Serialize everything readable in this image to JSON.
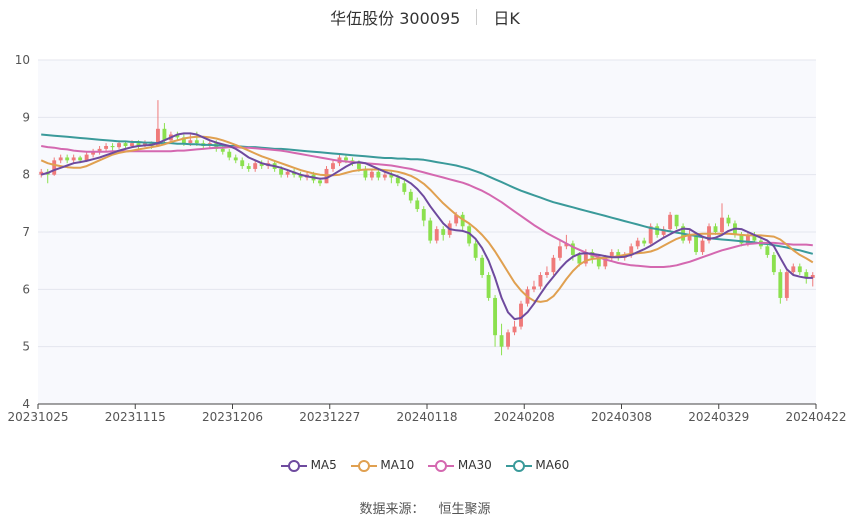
{
  "header": {
    "stock": "华伍股份 300095",
    "period": "日K"
  },
  "source": {
    "label": "数据来源：",
    "value": "恒生聚源"
  },
  "colors": {
    "up": "#ef7a7a",
    "down": "#8be04e",
    "MA5": "#6e4a9e",
    "MA10": "#e0a050",
    "MA30": "#d468b0",
    "MA60": "#3a9a9a",
    "grid": "#e4e6ee",
    "plot_bg": "#f8f9fd"
  },
  "chart_data": {
    "type": "candlestick",
    "ylim": [
      4,
      10
    ],
    "y_ticks": [
      4,
      5,
      6,
      7,
      8,
      9,
      10
    ],
    "x_tick_labels": [
      "20231025",
      "20231115",
      "20231206",
      "20231227",
      "20240118",
      "20240208",
      "20240308",
      "20240329",
      "20240422"
    ],
    "n_days": 120,
    "legend": [
      "MA5",
      "MA10",
      "MA30",
      "MA60"
    ],
    "candles": [
      [
        8.0,
        8.05,
        8.1,
        7.95
      ],
      [
        8.05,
        8.0,
        8.1,
        7.85
      ],
      [
        8.0,
        8.25,
        8.3,
        7.98
      ],
      [
        8.25,
        8.3,
        8.35,
        8.2
      ],
      [
        8.3,
        8.25,
        8.35,
        8.2
      ],
      [
        8.25,
        8.3,
        8.35,
        8.2
      ],
      [
        8.3,
        8.25,
        8.33,
        8.2
      ],
      [
        8.25,
        8.35,
        8.4,
        8.22
      ],
      [
        8.35,
        8.4,
        8.45,
        8.3
      ],
      [
        8.4,
        8.45,
        8.5,
        8.35
      ],
      [
        8.45,
        8.5,
        8.55,
        8.4
      ],
      [
        8.5,
        8.48,
        8.55,
        8.42
      ],
      [
        8.48,
        8.55,
        8.6,
        8.45
      ],
      [
        8.55,
        8.5,
        8.58,
        8.45
      ],
      [
        8.5,
        8.55,
        8.6,
        8.48
      ],
      [
        8.55,
        8.5,
        8.6,
        8.45
      ],
      [
        8.5,
        8.55,
        8.6,
        8.48
      ],
      [
        8.55,
        8.5,
        8.58,
        8.45
      ],
      [
        8.5,
        8.8,
        9.3,
        8.5
      ],
      [
        8.8,
        8.6,
        8.9,
        8.55
      ],
      [
        8.6,
        8.7,
        8.75,
        8.55
      ],
      [
        8.7,
        8.65,
        8.75,
        8.6
      ],
      [
        8.65,
        8.55,
        8.7,
        8.5
      ],
      [
        8.55,
        8.6,
        8.7,
        8.5
      ],
      [
        8.6,
        8.55,
        8.75,
        8.5
      ],
      [
        8.55,
        8.5,
        8.6,
        8.45
      ],
      [
        8.5,
        8.55,
        8.6,
        8.45
      ],
      [
        8.55,
        8.45,
        8.6,
        8.4
      ],
      [
        8.45,
        8.4,
        8.5,
        8.35
      ],
      [
        8.4,
        8.3,
        8.45,
        8.25
      ],
      [
        8.3,
        8.25,
        8.35,
        8.2
      ],
      [
        8.25,
        8.15,
        8.3,
        8.1
      ],
      [
        8.15,
        8.1,
        8.2,
        8.05
      ],
      [
        8.1,
        8.2,
        8.25,
        8.05
      ],
      [
        8.2,
        8.15,
        8.25,
        8.1
      ],
      [
        8.15,
        8.2,
        8.25,
        8.1
      ],
      [
        8.2,
        8.1,
        8.25,
        8.05
      ],
      [
        8.1,
        8.0,
        8.15,
        7.95
      ],
      [
        8.0,
        8.05,
        8.1,
        7.95
      ],
      [
        8.05,
        8.0,
        8.1,
        7.95
      ],
      [
        8.0,
        7.95,
        8.05,
        7.9
      ],
      [
        7.95,
        8.0,
        8.05,
        7.9
      ],
      [
        8.0,
        7.9,
        8.05,
        7.85
      ],
      [
        7.9,
        7.85,
        7.95,
        7.8
      ],
      [
        7.85,
        8.1,
        8.15,
        7.85
      ],
      [
        8.1,
        8.2,
        8.25,
        8.05
      ],
      [
        8.2,
        8.3,
        8.35,
        8.15
      ],
      [
        8.3,
        8.25,
        8.35,
        8.2
      ],
      [
        8.25,
        8.2,
        8.3,
        8.15
      ],
      [
        8.2,
        8.1,
        8.25,
        8.05
      ],
      [
        8.1,
        7.95,
        8.15,
        7.9
      ],
      [
        7.95,
        8.05,
        8.1,
        7.9
      ],
      [
        8.05,
        7.95,
        8.1,
        7.9
      ],
      [
        7.95,
        8.0,
        8.05,
        7.9
      ],
      [
        8.0,
        7.95,
        8.05,
        7.85
      ],
      [
        7.95,
        7.85,
        8.0,
        7.8
      ],
      [
        7.85,
        7.7,
        7.9,
        7.65
      ],
      [
        7.7,
        7.55,
        7.75,
        7.5
      ],
      [
        7.55,
        7.4,
        7.6,
        7.35
      ],
      [
        7.4,
        7.2,
        7.45,
        7.1
      ],
      [
        7.2,
        6.85,
        7.25,
        6.8
      ],
      [
        6.85,
        7.05,
        7.1,
        6.8
      ],
      [
        7.05,
        6.95,
        7.1,
        6.85
      ],
      [
        6.95,
        7.15,
        7.2,
        6.9
      ],
      [
        7.15,
        7.3,
        7.35,
        7.1
      ],
      [
        7.3,
        7.1,
        7.35,
        7.0
      ],
      [
        7.1,
        6.8,
        7.15,
        6.75
      ],
      [
        6.8,
        6.55,
        6.85,
        6.5
      ],
      [
        6.55,
        6.25,
        6.6,
        6.2
      ],
      [
        6.25,
        5.85,
        6.3,
        5.8
      ],
      [
        5.85,
        5.2,
        5.9,
        5.0
      ],
      [
        5.2,
        5.0,
        5.4,
        4.85
      ],
      [
        5.0,
        5.25,
        5.3,
        4.95
      ],
      [
        5.25,
        5.35,
        5.45,
        5.2
      ],
      [
        5.35,
        5.75,
        5.8,
        5.3
      ],
      [
        5.75,
        6.0,
        6.05,
        5.7
      ],
      [
        6.0,
        6.05,
        6.15,
        5.95
      ],
      [
        6.05,
        6.25,
        6.3,
        6.0
      ],
      [
        6.25,
        6.3,
        6.4,
        6.2
      ],
      [
        6.3,
        6.55,
        6.6,
        6.25
      ],
      [
        6.55,
        6.75,
        6.85,
        6.5
      ],
      [
        6.75,
        6.8,
        6.95,
        6.7
      ],
      [
        6.8,
        6.6,
        6.85,
        6.5
      ],
      [
        6.6,
        6.45,
        6.65,
        6.4
      ],
      [
        6.45,
        6.65,
        6.7,
        6.4
      ],
      [
        6.65,
        6.55,
        6.7,
        6.45
      ],
      [
        6.55,
        6.4,
        6.6,
        6.35
      ],
      [
        6.4,
        6.55,
        6.6,
        6.35
      ],
      [
        6.55,
        6.65,
        6.7,
        6.5
      ],
      [
        6.65,
        6.55,
        6.7,
        6.5
      ],
      [
        6.55,
        6.6,
        6.65,
        6.5
      ],
      [
        6.6,
        6.75,
        6.8,
        6.55
      ],
      [
        6.75,
        6.85,
        6.9,
        6.7
      ],
      [
        6.85,
        6.8,
        6.9,
        6.75
      ],
      [
        6.8,
        7.1,
        7.15,
        6.78
      ],
      [
        7.1,
        6.95,
        7.15,
        6.9
      ],
      [
        6.95,
        7.05,
        7.1,
        6.9
      ],
      [
        7.05,
        7.3,
        7.35,
        7.0
      ],
      [
        7.3,
        7.1,
        7.3,
        7.05
      ],
      [
        7.1,
        6.85,
        7.15,
        6.8
      ],
      [
        6.85,
        6.95,
        7.05,
        6.8
      ],
      [
        6.95,
        6.65,
        7.0,
        6.6
      ],
      [
        6.65,
        6.85,
        6.9,
        6.6
      ],
      [
        6.85,
        7.1,
        7.15,
        6.8
      ],
      [
        7.1,
        7.0,
        7.15,
        6.95
      ],
      [
        7.0,
        7.25,
        7.5,
        6.95
      ],
      [
        7.25,
        7.15,
        7.3,
        7.1
      ],
      [
        7.15,
        6.95,
        7.2,
        6.9
      ],
      [
        6.95,
        6.8,
        7.0,
        6.75
      ],
      [
        6.8,
        6.95,
        7.0,
        6.75
      ],
      [
        6.95,
        6.85,
        7.0,
        6.8
      ],
      [
        6.85,
        6.75,
        6.9,
        6.7
      ],
      [
        6.75,
        6.6,
        6.8,
        6.55
      ],
      [
        6.6,
        6.3,
        6.65,
        6.25
      ],
      [
        6.3,
        5.85,
        6.35,
        5.75
      ],
      [
        5.85,
        6.3,
        6.35,
        5.8
      ],
      [
        6.3,
        6.4,
        6.45,
        6.25
      ],
      [
        6.4,
        6.3,
        6.45,
        6.25
      ],
      [
        6.3,
        6.2,
        6.35,
        6.1
      ],
      [
        6.2,
        6.25,
        6.3,
        6.05
      ]
    ],
    "MA5": [
      8.0,
      8.03,
      8.08,
      8.12,
      8.16,
      8.2,
      8.22,
      8.24,
      8.27,
      8.3,
      8.34,
      8.38,
      8.42,
      8.45,
      8.48,
      8.5,
      8.51,
      8.52,
      8.55,
      8.6,
      8.65,
      8.7,
      8.72,
      8.72,
      8.7,
      8.65,
      8.6,
      8.56,
      8.53,
      8.5,
      8.45,
      8.38,
      8.3,
      8.25,
      8.2,
      8.17,
      8.15,
      8.12,
      8.08,
      8.04,
      8.0,
      7.97,
      7.95,
      7.93,
      7.94,
      8.0,
      8.07,
      8.14,
      8.2,
      8.22,
      8.2,
      8.15,
      8.1,
      8.05,
      8.01,
      7.97,
      7.92,
      7.85,
      7.75,
      7.62,
      7.45,
      7.3,
      7.15,
      7.05,
      7.03,
      7.02,
      6.98,
      6.88,
      6.72,
      6.5,
      6.2,
      5.85,
      5.6,
      5.48,
      5.5,
      5.6,
      5.75,
      5.92,
      6.08,
      6.22,
      6.36,
      6.48,
      6.57,
      6.62,
      6.63,
      6.62,
      6.6,
      6.58,
      6.56,
      6.56,
      6.57,
      6.6,
      6.65,
      6.7,
      6.76,
      6.83,
      6.9,
      6.96,
      7.02,
      7.06,
      7.05,
      6.98,
      6.92,
      6.88,
      6.9,
      6.95,
      7.02,
      7.06,
      7.05,
      7.0,
      6.95,
      6.9,
      6.85,
      6.75,
      6.55,
      6.35,
      6.25,
      6.22,
      6.2,
      6.2
    ],
    "MA10": [
      8.25,
      8.2,
      8.17,
      8.15,
      8.13,
      8.12,
      8.12,
      8.15,
      8.2,
      8.25,
      8.3,
      8.35,
      8.38,
      8.4,
      8.42,
      8.44,
      8.46,
      8.48,
      8.5,
      8.53,
      8.57,
      8.6,
      8.63,
      8.65,
      8.66,
      8.66,
      8.65,
      8.63,
      8.6,
      8.56,
      8.52,
      8.47,
      8.42,
      8.37,
      8.32,
      8.28,
      8.24,
      8.2,
      8.16,
      8.12,
      8.08,
      8.05,
      8.02,
      8.0,
      7.99,
      7.99,
      8.0,
      8.03,
      8.06,
      8.08,
      8.09,
      8.09,
      8.09,
      8.08,
      8.07,
      8.05,
      8.02,
      7.98,
      7.92,
      7.84,
      7.74,
      7.62,
      7.5,
      7.4,
      7.3,
      7.22,
      7.15,
      7.06,
      6.95,
      6.82,
      6.66,
      6.48,
      6.3,
      6.12,
      5.98,
      5.87,
      5.8,
      5.78,
      5.8,
      5.88,
      6.02,
      6.18,
      6.32,
      6.43,
      6.5,
      6.53,
      6.54,
      6.55,
      6.56,
      6.58,
      6.6,
      6.62,
      6.63,
      6.64,
      6.66,
      6.7,
      6.76,
      6.82,
      6.88,
      6.92,
      6.95,
      6.96,
      6.97,
      6.97,
      6.97,
      6.97,
      6.97,
      6.96,
      6.95,
      6.94,
      6.94,
      6.94,
      6.93,
      6.92,
      6.87,
      6.78,
      6.68,
      6.6,
      6.54,
      6.47
    ],
    "MA30": [
      8.5,
      8.48,
      8.47,
      8.45,
      8.44,
      8.42,
      8.41,
      8.4,
      8.4,
      8.4,
      8.4,
      8.41,
      8.41,
      8.41,
      8.41,
      8.41,
      8.41,
      8.41,
      8.41,
      8.41,
      8.41,
      8.42,
      8.42,
      8.43,
      8.44,
      8.45,
      8.46,
      8.47,
      8.47,
      8.48,
      8.48,
      8.47,
      8.47,
      8.46,
      8.45,
      8.44,
      8.43,
      8.42,
      8.4,
      8.38,
      8.36,
      8.34,
      8.32,
      8.3,
      8.28,
      8.26,
      8.24,
      8.23,
      8.22,
      8.21,
      8.2,
      8.19,
      8.18,
      8.17,
      8.16,
      8.14,
      8.12,
      8.1,
      8.07,
      8.04,
      8.01,
      7.98,
      7.95,
      7.92,
      7.89,
      7.86,
      7.82,
      7.77,
      7.72,
      7.66,
      7.59,
      7.52,
      7.44,
      7.36,
      7.28,
      7.2,
      7.12,
      7.05,
      6.98,
      6.92,
      6.86,
      6.8,
      6.74,
      6.69,
      6.64,
      6.6,
      6.56,
      6.52,
      6.49,
      6.46,
      6.44,
      6.42,
      6.41,
      6.4,
      6.39,
      6.39,
      6.39,
      6.4,
      6.42,
      6.45,
      6.48,
      6.52,
      6.56,
      6.6,
      6.64,
      6.68,
      6.71,
      6.74,
      6.77,
      6.79,
      6.8,
      6.81,
      6.81,
      6.81,
      6.8,
      6.79,
      6.78,
      6.78,
      6.78,
      6.77
    ],
    "MA60": [
      8.7,
      8.69,
      8.68,
      8.67,
      8.66,
      8.65,
      8.64,
      8.63,
      8.62,
      8.61,
      8.6,
      8.59,
      8.58,
      8.58,
      8.57,
      8.57,
      8.56,
      8.56,
      8.55,
      8.55,
      8.55,
      8.54,
      8.54,
      8.53,
      8.53,
      8.52,
      8.52,
      8.51,
      8.51,
      8.5,
      8.5,
      8.49,
      8.48,
      8.48,
      8.47,
      8.46,
      8.45,
      8.45,
      8.44,
      8.43,
      8.42,
      8.41,
      8.4,
      8.39,
      8.38,
      8.37,
      8.36,
      8.35,
      8.34,
      8.33,
      8.32,
      8.31,
      8.3,
      8.29,
      8.29,
      8.28,
      8.28,
      8.27,
      8.27,
      8.26,
      8.24,
      8.22,
      8.2,
      8.18,
      8.16,
      8.13,
      8.1,
      8.06,
      8.02,
      7.97,
      7.92,
      7.87,
      7.82,
      7.77,
      7.72,
      7.68,
      7.64,
      7.6,
      7.56,
      7.52,
      7.49,
      7.46,
      7.43,
      7.4,
      7.37,
      7.34,
      7.31,
      7.28,
      7.25,
      7.22,
      7.19,
      7.16,
      7.13,
      7.1,
      7.07,
      7.05,
      7.03,
      7.01,
      6.99,
      6.97,
      6.95,
      6.93,
      6.91,
      6.89,
      6.88,
      6.87,
      6.86,
      6.85,
      6.84,
      6.83,
      6.82,
      6.8,
      6.79,
      6.77,
      6.75,
      6.73,
      6.7,
      6.68,
      6.65,
      6.62
    ]
  }
}
